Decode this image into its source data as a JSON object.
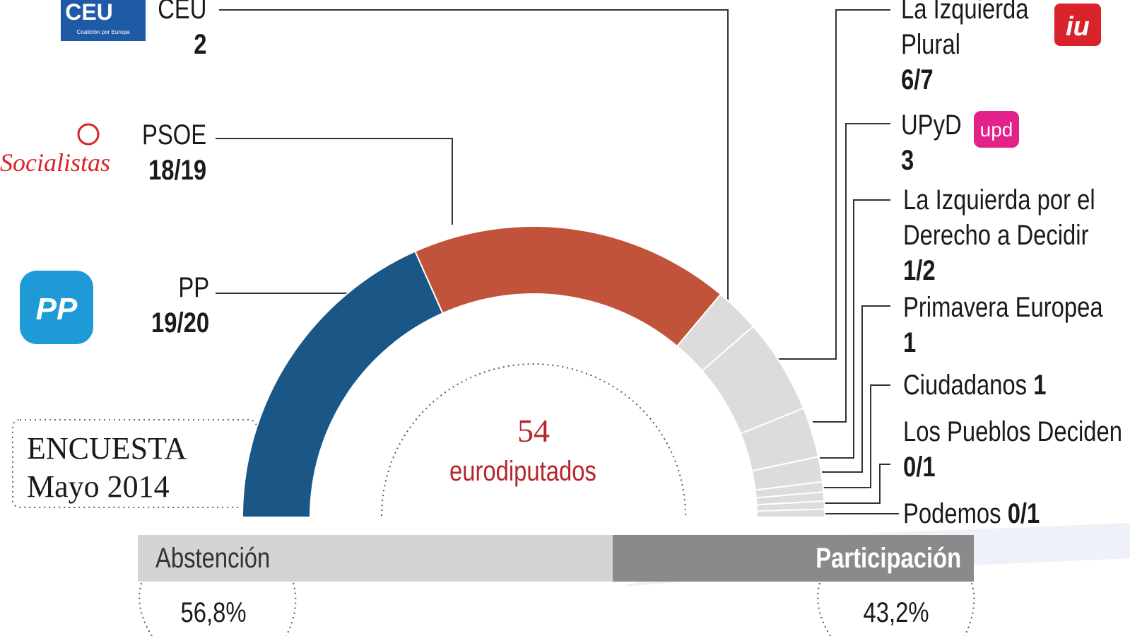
{
  "parties": [
    {
      "name": "CEU",
      "seats": "2"
    },
    {
      "name": "PSOE",
      "seats": "18/19"
    },
    {
      "name": "PP",
      "seats": "19/20"
    },
    {
      "name": "La Izquierda Plural",
      "seats": "6/7"
    },
    {
      "name": "UPyD",
      "seats": "3"
    },
    {
      "name": "La Izquierda por el Derecho a Decidir",
      "seats": "1/2"
    },
    {
      "name": "Primavera Europea",
      "seats": "1"
    },
    {
      "name": "Ciudadanos",
      "seats": "1"
    },
    {
      "name": "Los Pueblos Deciden",
      "seats": "0/1"
    },
    {
      "name": "Podemos",
      "seats": "0/1"
    }
  ],
  "logos": {
    "ceu": "CEU",
    "ceu_sub": "Coalición por Europa",
    "psoe": "Socialistas",
    "pp": "PP",
    "iu": "iu",
    "upyd": "upd"
  },
  "center": {
    "value": "54",
    "label": "eurodiputados"
  },
  "survey": {
    "title": "ENCUESTA",
    "date": "Mayo 2014"
  },
  "turnout": [
    {
      "label": "Abstención",
      "value": 56.8,
      "value_label": "56,8%"
    },
    {
      "label": "Participación",
      "value": 43.2,
      "value_label": "43,2%"
    }
  ]
}
